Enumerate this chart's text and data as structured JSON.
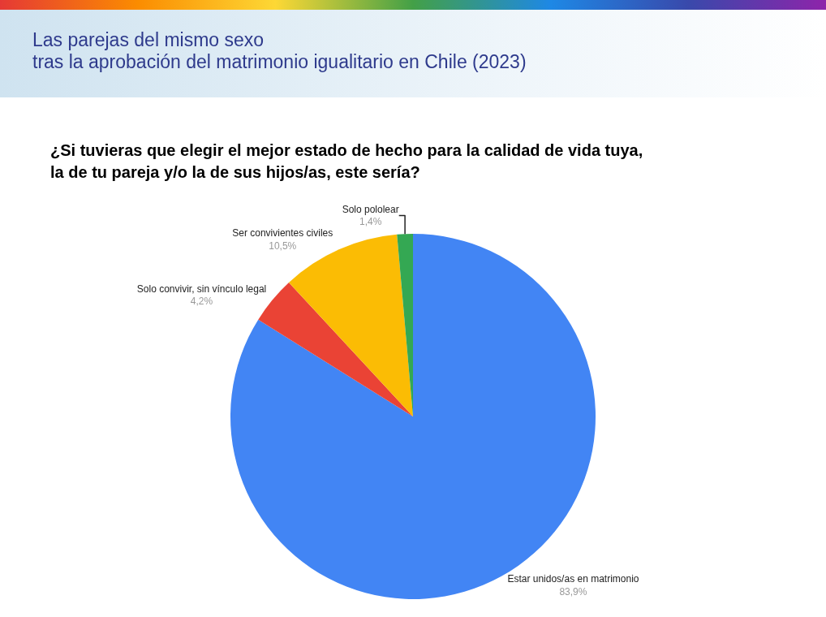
{
  "chart_data": {
    "type": "pie",
    "title": "Las parejas del mismo sexo\ntras la aprobación del matrimonio igualitario en Chile (2023)",
    "subtitle": "¿Si tuvieras que elegir el mejor estado de hecho para la calidad de vida tuya,\nla de tu pareja y/o la de sus hijos/as, este sería?",
    "categories": [
      "Estar unidos/as en matrimonio",
      "Solo convivir, sin vínculo legal",
      "Ser convivientes civiles",
      "Solo pololear"
    ],
    "values": [
      83.9,
      4.2,
      10.5,
      1.4
    ],
    "value_labels": [
      "83,9%",
      "4,2%",
      "10,5%",
      "1,4%"
    ],
    "colors": [
      "#4285f4",
      "#ea4335",
      "#fbbc04",
      "#34a853"
    ],
    "legend": false
  }
}
